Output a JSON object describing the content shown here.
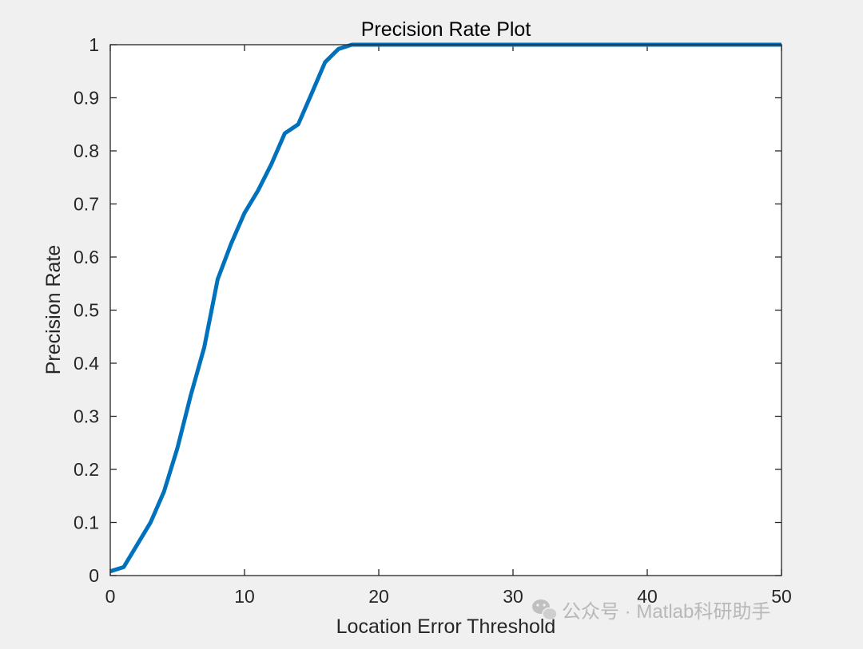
{
  "chart_data": {
    "type": "line",
    "title": "Precision Rate Plot",
    "xlabel": "Location Error Threshold",
    "ylabel": "Precision Rate",
    "xlim": [
      0,
      50
    ],
    "ylim": [
      0,
      1
    ],
    "xticks": [
      0,
      10,
      20,
      30,
      40,
      50
    ],
    "yticks": [
      0,
      0.1,
      0.2,
      0.3,
      0.4,
      0.5,
      0.6,
      0.7,
      0.8,
      0.9,
      1
    ],
    "xtick_labels": [
      "0",
      "10",
      "20",
      "30",
      "40",
      "50"
    ],
    "ytick_labels": [
      "0",
      "0.1",
      "0.2",
      "0.3",
      "0.4",
      "0.5",
      "0.6",
      "0.7",
      "0.8",
      "0.9",
      "1"
    ],
    "grid": false,
    "series": [
      {
        "color": "#0072bd",
        "x": [
          0,
          1,
          2,
          3,
          4,
          5,
          6,
          7,
          8,
          9,
          10,
          11,
          12,
          13,
          14,
          15,
          16,
          17,
          18,
          19,
          20,
          21,
          22,
          23,
          24,
          25,
          26,
          27,
          28,
          29,
          30,
          31,
          32,
          33,
          34,
          35,
          36,
          37,
          38,
          39,
          40,
          41,
          42,
          43,
          44,
          45,
          46,
          47,
          48,
          49,
          50
        ],
        "y": [
          0.008,
          0.016,
          0.058,
          0.1,
          0.158,
          0.24,
          0.34,
          0.43,
          0.558,
          0.625,
          0.683,
          0.725,
          0.775,
          0.833,
          0.85,
          0.908,
          0.967,
          0.992,
          1,
          1,
          1,
          1,
          1,
          1,
          1,
          1,
          1,
          1,
          1,
          1,
          1,
          1,
          1,
          1,
          1,
          1,
          1,
          1,
          1,
          1,
          1,
          1,
          1,
          1,
          1,
          1,
          1,
          1,
          1,
          1,
          1
        ]
      }
    ]
  },
  "watermark": {
    "text": "公众号 · Matlab科研助手",
    "icon": "wechat-icon"
  },
  "colors": {
    "figure_background": "#f0f0f0",
    "axes_background": "#ffffff",
    "axis_color": "#262626",
    "line_color": "#0072bd"
  }
}
